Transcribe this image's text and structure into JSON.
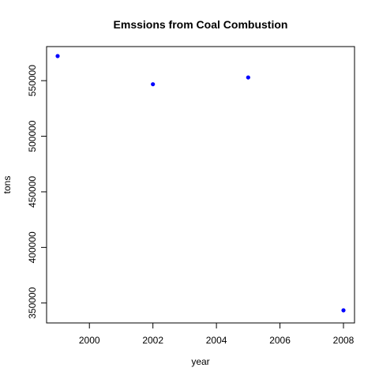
{
  "chart_data": {
    "type": "scatter",
    "title": "Emssions from Coal Combustion",
    "xlabel": "year",
    "ylabel": "tons",
    "x": [
      1999,
      2002,
      2005,
      2008
    ],
    "y": [
      572126,
      546789,
      552881,
      343432
    ],
    "xlim": [
      1999,
      2008
    ],
    "ylim": [
      343432,
      572126
    ],
    "xticks": [
      2000,
      2002,
      2004,
      2006,
      2008
    ],
    "yticks": [
      350000,
      400000,
      450000,
      500000,
      550000
    ],
    "xtick_labels": [
      "2000",
      "2002",
      "2004",
      "2006",
      "2008"
    ],
    "ytick_labels": [
      "350000",
      "400000",
      "450000",
      "500000",
      "550000"
    ],
    "point_color": "#0000ff",
    "grid": false,
    "legend": "none"
  }
}
